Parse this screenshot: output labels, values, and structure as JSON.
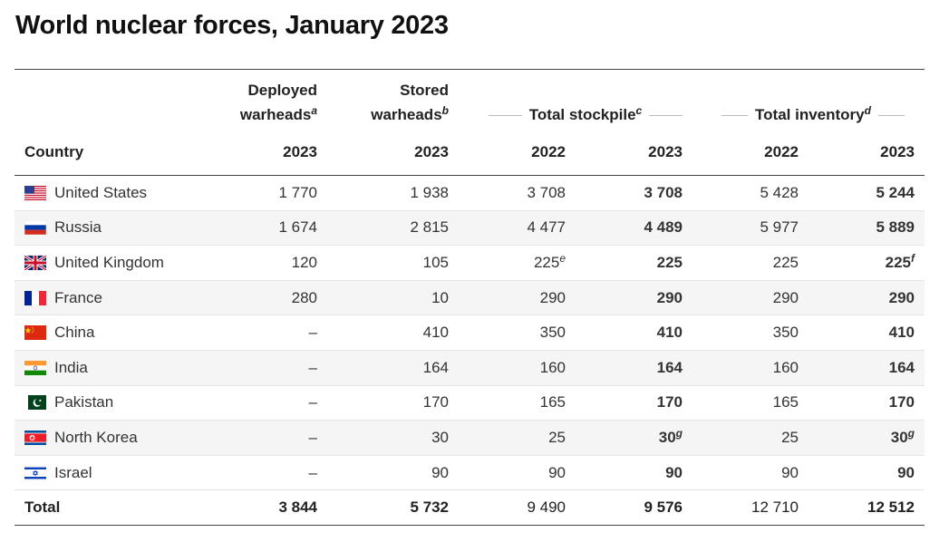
{
  "title": "World nuclear forces, January 2023",
  "headers": {
    "deployed": [
      "Deployed",
      "warheads"
    ],
    "deployed_note": "a",
    "stored": [
      "Stored",
      "warheads"
    ],
    "stored_note": "b",
    "total_stockpile": "Total stockpile",
    "total_stockpile_note": "c",
    "total_inventory": "Total inventory",
    "total_inventory_note": "d",
    "country": "Country",
    "years": [
      "2023",
      "2023",
      "2022",
      "2023",
      "2022",
      "2023"
    ]
  },
  "chart_data": {
    "type": "table",
    "columns": [
      "Country",
      "Deployed warheads 2023",
      "Stored warheads 2023",
      "Total stockpile 2022",
      "Total stockpile 2023",
      "Total inventory 2022",
      "Total inventory 2023"
    ],
    "rows": [
      {
        "country": "United States",
        "flag": "us-flag-icon",
        "deployed": "1 770",
        "stored": "1 938",
        "stock22": "3 708",
        "stock23": "3 708",
        "inv22": "5 428",
        "inv23": "5 244"
      },
      {
        "country": "Russia",
        "flag": "russia-flag-icon",
        "deployed": "1 674",
        "stored": "2 815",
        "stock22": "4 477",
        "stock23": "4 489",
        "inv22": "5 977",
        "inv23": "5 889"
      },
      {
        "country": "United Kingdom",
        "flag": "uk-flag-icon",
        "deployed": "120",
        "stored": "105",
        "stock22": "225",
        "stock22_note": "e",
        "stock23": "225",
        "inv22": "225",
        "inv23": "225",
        "inv23_note": "f"
      },
      {
        "country": "France",
        "flag": "france-flag-icon",
        "deployed": "280",
        "stored": "10",
        "stock22": "290",
        "stock23": "290",
        "inv22": "290",
        "inv23": "290"
      },
      {
        "country": "China",
        "flag": "china-flag-icon",
        "deployed": "–",
        "stored": "410",
        "stock22": "350",
        "stock23": "410",
        "inv22": "350",
        "inv23": "410"
      },
      {
        "country": "India",
        "flag": "india-flag-icon",
        "deployed": "–",
        "stored": "164",
        "stock22": "160",
        "stock23": "164",
        "inv22": "160",
        "inv23": "164"
      },
      {
        "country": "Pakistan",
        "flag": "pakistan-flag-icon",
        "deployed": "–",
        "stored": "170",
        "stock22": "165",
        "stock23": "170",
        "inv22": "165",
        "inv23": "170"
      },
      {
        "country": "North Korea",
        "flag": "north-korea-flag-icon",
        "deployed": "–",
        "stored": "30",
        "stock22": "25",
        "stock23": "30",
        "stock23_note": "g",
        "inv22": "25",
        "inv23": "30",
        "inv23_note": "g"
      },
      {
        "country": "Israel",
        "flag": "israel-flag-icon",
        "deployed": "–",
        "stored": "90",
        "stock22": "90",
        "stock23": "90",
        "inv22": "90",
        "inv23": "90"
      }
    ],
    "total": {
      "label": "Total",
      "deployed": "3 844",
      "stored": "5 732",
      "stock22": "9 490",
      "stock23": "9 576",
      "inv22": "12 710",
      "inv23": "12 512"
    }
  }
}
